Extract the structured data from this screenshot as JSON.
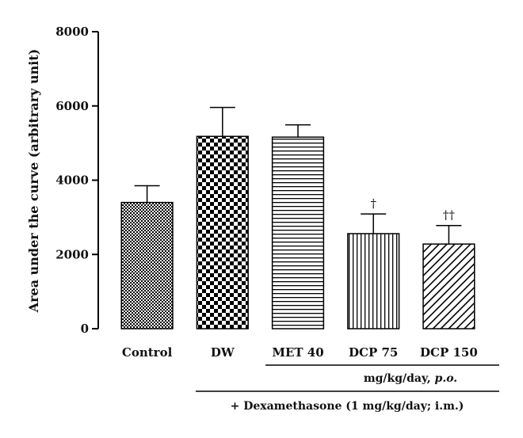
{
  "chart_data": {
    "type": "bar",
    "categories": [
      "Control",
      "DW",
      "MET 40",
      "DCP 75",
      "DCP 150"
    ],
    "values": [
      3400,
      5180,
      5160,
      2560,
      2280
    ],
    "errors": [
      450,
      780,
      330,
      530,
      500
    ],
    "significance": [
      "",
      "",
      "",
      "†",
      "††"
    ],
    "ylabel": "Area under the curve (arbitrary unit)",
    "ylim": [
      0,
      8000
    ],
    "yticks": [
      0,
      2000,
      4000,
      6000,
      8000
    ],
    "grid": false,
    "patterns": [
      "fine-check",
      "coarse-check",
      "horizontal-lines",
      "vertical-lines",
      "diagonal-lines"
    ],
    "bar_color": "#000000",
    "dose_label_main": "mg/kg/day, ",
    "dose_label_route": "p.o.",
    "treatment_label": "+ Dexamethasone (1 mg/kg/day; i.m.)"
  }
}
